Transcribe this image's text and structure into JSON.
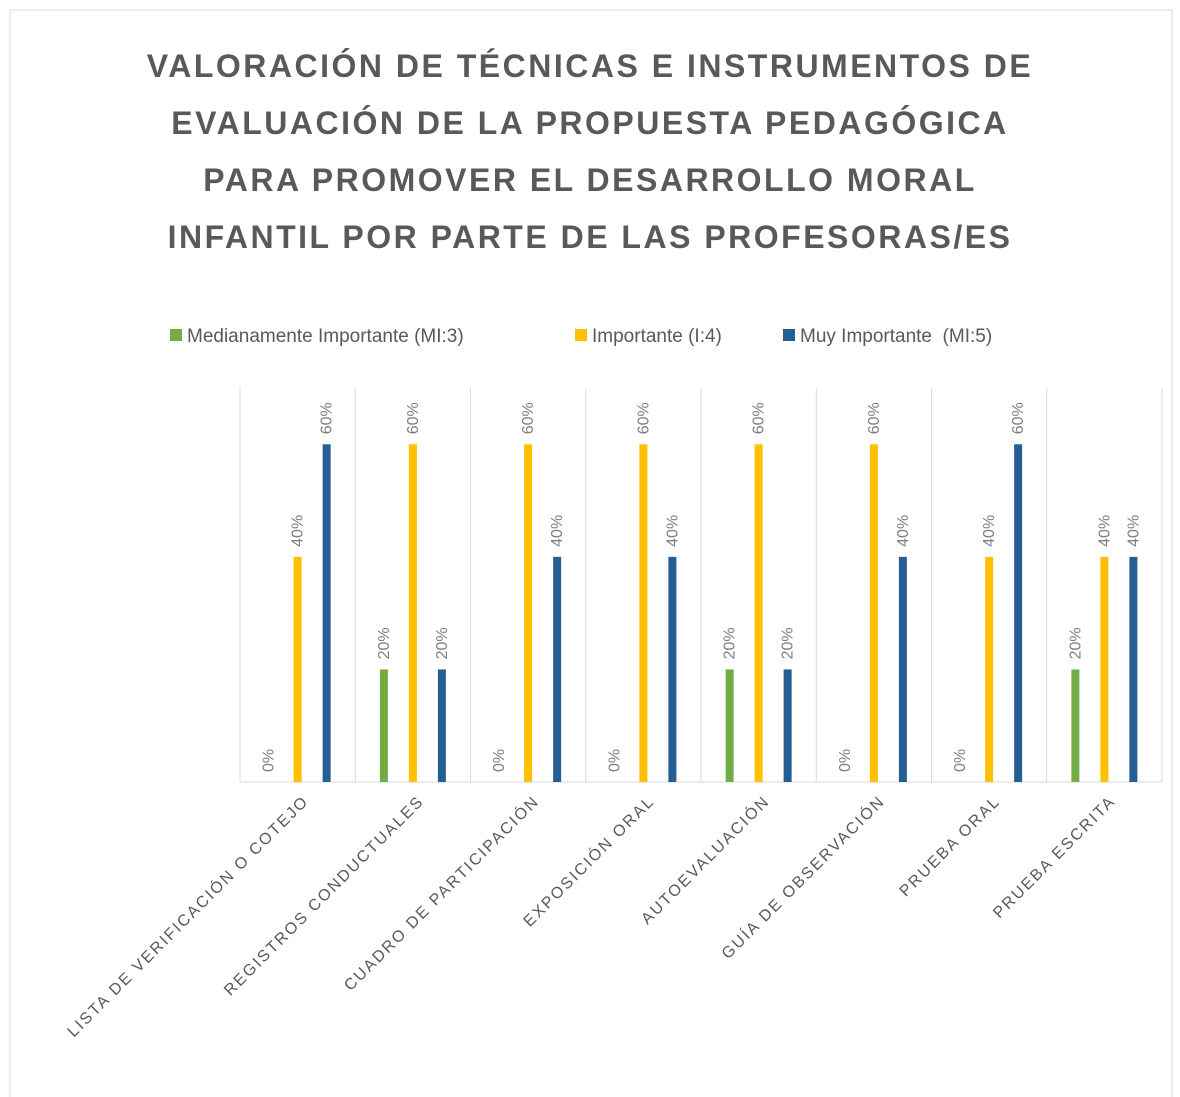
{
  "chart_data": {
    "type": "bar",
    "title": "VALORACIÓN DE TÉCNICAS E INSTRUMENTOS DE EVALUACIÓN DE LA PROPUESTA PEDAGÓGICA PARA PROMOVER EL DESARROLLO MORAL INFANTIL POR PARTE DE LAS PROFESORAS/ES",
    "categories": [
      "LISTA DE VERIFICACIÓN O COTEJO",
      "REGISTROS CONDUCTUALES",
      "CUADRO DE PARTICIPACIÓN",
      "EXPOSICIÓN ORAL",
      "AUTOEVALUACIÓN",
      "GUÍA DE OBSERVACIÓN",
      "PRUEBA ORAL",
      "PRUEBA ESCRITA"
    ],
    "series": [
      {
        "name": "Medianamente Importante (MI:3)",
        "color": "#70ad47",
        "values": [
          0,
          20,
          0,
          0,
          20,
          0,
          0,
          20
        ],
        "value_labels": [
          "0%",
          "20%",
          "0%",
          "0%",
          "20%",
          "0%",
          "0%",
          "20%"
        ]
      },
      {
        "name": "Importante (I:4)",
        "color": "#ffc000",
        "values": [
          40,
          60,
          60,
          60,
          60,
          60,
          40,
          40
        ],
        "value_labels": [
          "40%",
          "60%",
          "60%",
          "60%",
          "60%",
          "60%",
          "40%",
          "40%"
        ]
      },
      {
        "name": "Muy Importante  (MI:5)",
        "color": "#255e91",
        "values": [
          60,
          20,
          40,
          40,
          20,
          40,
          60,
          40
        ],
        "value_labels": [
          "60%",
          "20%",
          "40%",
          "40%",
          "20%",
          "40%",
          "60%",
          "40%"
        ]
      }
    ],
    "ylim": [
      0,
      70
    ],
    "legend": "top"
  }
}
